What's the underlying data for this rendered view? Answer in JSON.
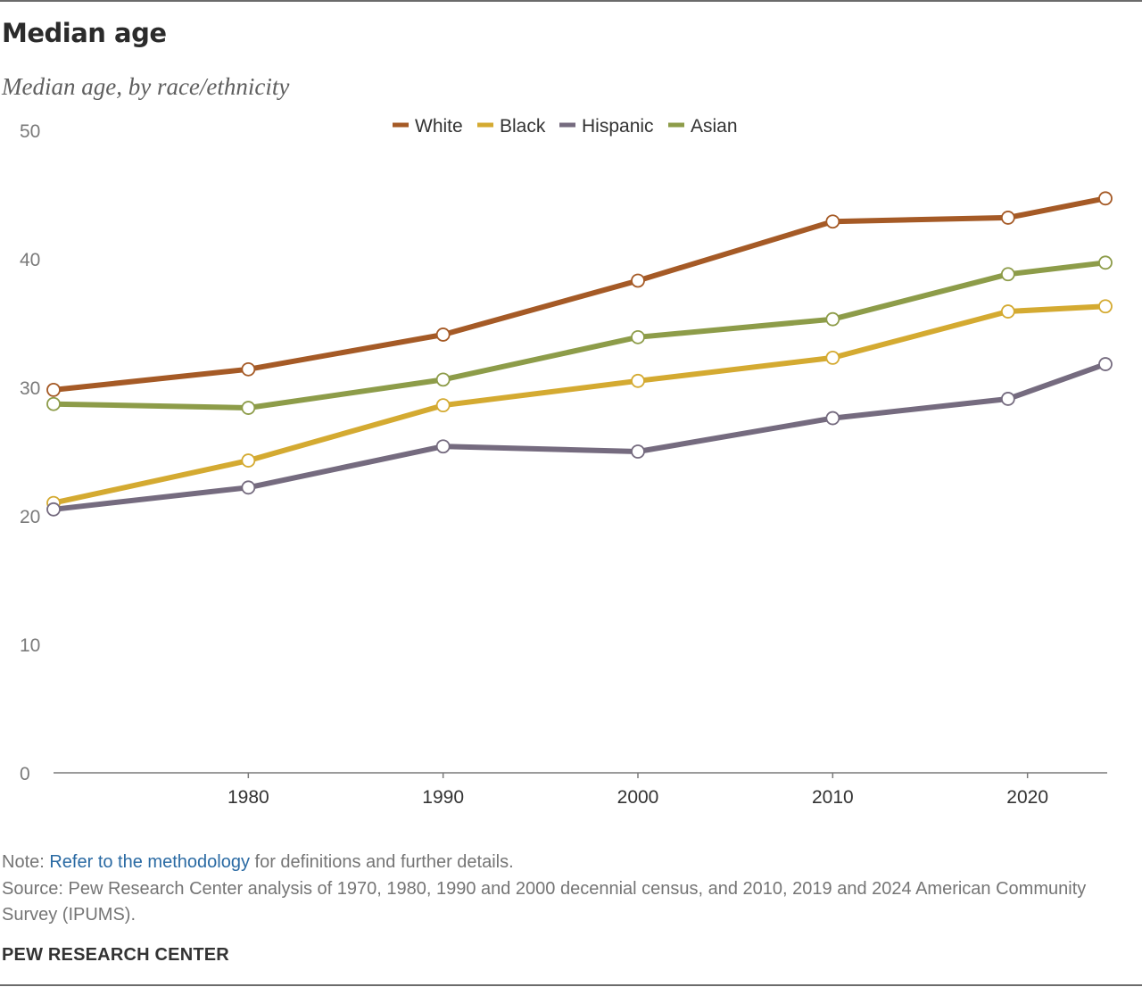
{
  "header": {
    "title": "Median age",
    "subtitle": "Median age, by race/ethnicity"
  },
  "notes": {
    "note_prefix": "Note: ",
    "note_link": "Refer to the methodology",
    "note_suffix": " for definitions and further details.",
    "source": "Source: Pew Research Center analysis of 1970, 1980, 1990 and 2000 decennial census, and 2010, 2019 and 2024 American Community Survey (IPUMS)."
  },
  "footer": {
    "brand": "PEW RESEARCH CENTER"
  },
  "chart_data": {
    "type": "line",
    "x": [
      1970,
      1980,
      1990,
      2000,
      2010,
      2019,
      2024
    ],
    "xticks": [
      1980,
      1990,
      2000,
      2010,
      2020
    ],
    "xlim": [
      1970,
      2024
    ],
    "ylim": [
      0,
      50
    ],
    "yticks": [
      0,
      10,
      20,
      30,
      40,
      50
    ],
    "grid": false,
    "legend": "top-center",
    "series": [
      {
        "name": "White",
        "color": "#a55a26",
        "values": [
          29.8,
          31.4,
          34.1,
          38.3,
          42.9,
          43.2,
          44.7
        ]
      },
      {
        "name": "Black",
        "color": "#d4aa31",
        "values": [
          21.0,
          24.3,
          28.6,
          30.5,
          32.3,
          35.9,
          36.3
        ]
      },
      {
        "name": "Hispanic",
        "color": "#756b7f",
        "values": [
          20.5,
          22.2,
          25.4,
          25.0,
          27.6,
          29.1,
          31.8
        ]
      },
      {
        "name": "Asian",
        "color": "#8d9c49",
        "values": [
          28.7,
          28.4,
          30.6,
          33.9,
          35.3,
          38.8,
          39.7
        ]
      }
    ]
  }
}
